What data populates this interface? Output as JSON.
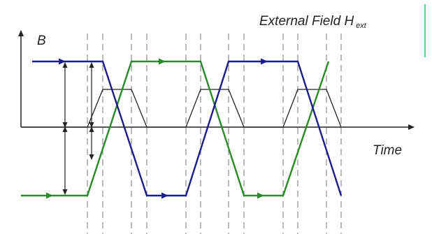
{
  "labels": {
    "b_axis": "B",
    "time_axis": "Time",
    "field_title": "External Field H",
    "field_subscript": "ext"
  },
  "colors": {
    "blue_wave": "#1c1c8c",
    "green_wave": "#2a8a2a",
    "field_pulses": "#222222",
    "axes": "#222222",
    "guides": "#8c8c8c",
    "edge_accent": "#5fcf8f"
  },
  "icons": [
    "arrow-head-icon"
  ]
}
